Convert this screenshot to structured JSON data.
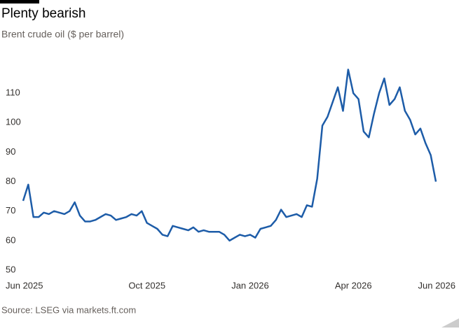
{
  "chart_data": {
    "type": "line",
    "title": "Plenty bearish",
    "subtitle": "Brent crude oil ($ per barrel)",
    "source": "Source: LSEG via markets.ft.com",
    "categories": [
      "Jun 2025",
      null,
      null,
      null,
      null,
      null,
      null,
      null,
      null,
      null,
      null,
      null,
      null,
      null,
      null,
      null,
      null,
      null,
      null,
      null,
      null,
      null,
      null,
      null,
      "Oct 2025",
      null,
      null,
      null,
      null,
      null,
      null,
      null,
      null,
      null,
      null,
      null,
      null,
      null,
      null,
      null,
      null,
      null,
      null,
      null,
      "Jan 2026",
      null,
      null,
      null,
      null,
      null,
      null,
      null,
      null,
      null,
      null,
      null,
      null,
      null,
      null,
      null,
      null,
      null,
      null,
      null,
      "Apr 2026",
      null,
      null,
      null,
      null,
      null,
      null,
      null,
      null,
      null,
      null,
      null,
      null,
      null,
      null,
      null,
      "Jun 2026"
    ],
    "series": [
      {
        "name": "Brent crude oil",
        "color": "#1d5ca8",
        "values": [
          73.5,
          79,
          68,
          68,
          69.5,
          69,
          70,
          69.5,
          69,
          70,
          73,
          68.5,
          66.5,
          66.5,
          67,
          68,
          69,
          68.5,
          67,
          67.5,
          68,
          69,
          68.5,
          70,
          66,
          65,
          64,
          62,
          61.5,
          65,
          64.5,
          64,
          63.5,
          64.5,
          63,
          63.5,
          63,
          63,
          63,
          62,
          60,
          61,
          62,
          61.5,
          62,
          61,
          64,
          64.5,
          65,
          67,
          70.5,
          68,
          68.5,
          69,
          68,
          72,
          71.5,
          81,
          99,
          102,
          107,
          112,
          104,
          118,
          110,
          108,
          97,
          95,
          103,
          110,
          115,
          106,
          108,
          112,
          104,
          101,
          96,
          98,
          93,
          89,
          80
        ]
      }
    ],
    "ylim": [
      50,
      120
    ],
    "yticks": [
      50,
      60,
      70,
      80,
      90,
      100,
      110
    ],
    "grid": false
  }
}
